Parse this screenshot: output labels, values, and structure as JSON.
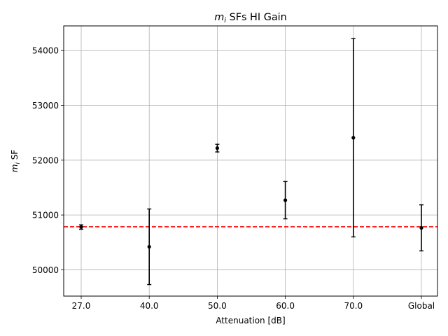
{
  "chart_data": {
    "type": "scatter",
    "title_prefix": "m",
    "title_sub": "i",
    "title_rest": " SFs HI Gain",
    "xlabel": "Attenuation [dB]",
    "ylabel_prefix": "m",
    "ylabel_sub": "i",
    "ylabel_rest": " SF",
    "categories": [
      "27.0",
      "40.0",
      "50.0",
      "60.0",
      "70.0",
      "Global"
    ],
    "values": [
      50780,
      50420,
      52220,
      51270,
      52410,
      50765
    ],
    "errors": [
      40,
      690,
      70,
      340,
      1810,
      420
    ],
    "reference_line": 50785,
    "ylim": [
      49520,
      54450
    ],
    "yticks": [
      50000,
      51000,
      52000,
      53000,
      54000
    ],
    "grid": true,
    "colors": {
      "points": "#000000",
      "reference": "#ff0000",
      "grid": "#b0b0b0"
    }
  }
}
